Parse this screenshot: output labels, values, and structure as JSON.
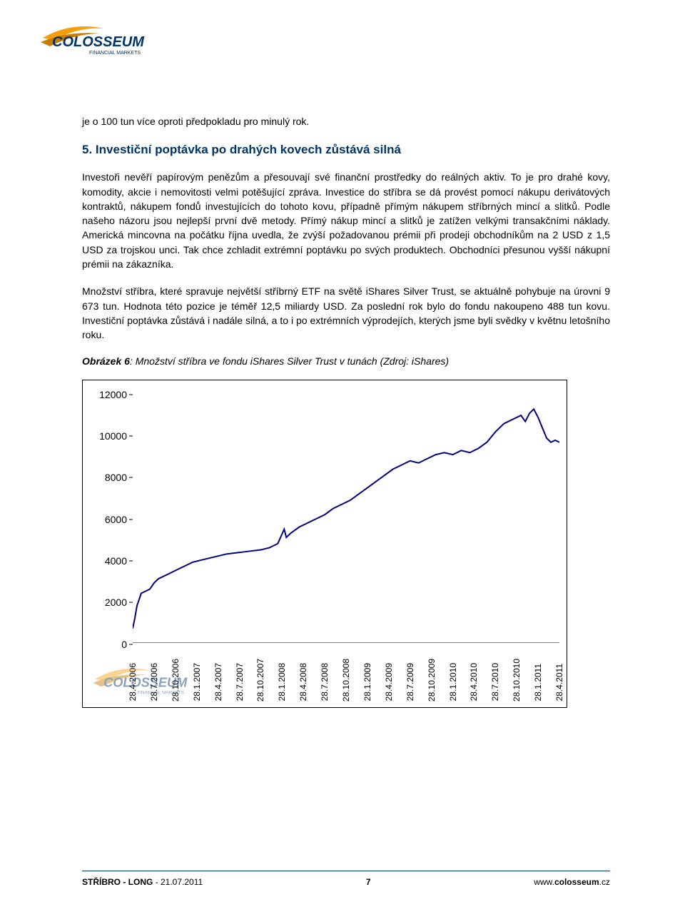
{
  "logo": {
    "brand_text": "COLOSSEUM",
    "subtitle": "FINANCIAL MARKETS",
    "swoosh_color": "#f59e0b",
    "text_color": "#003366"
  },
  "intro_line": "je o 100 tun více oproti předpokladu pro minulý rok.",
  "section": {
    "number": "5.",
    "title": "Investiční poptávka po drahých kovech zůstává silná"
  },
  "paragraph1": "Investoři nevěří papírovým penězům a přesouvají své finanční prostředky do reálných aktiv. To je pro drahé kovy, komodity, akcie i nemovitosti velmi potěšující zpráva. Investice do stříbra se dá provést pomocí nákupu derivátových kontraktů, nákupem fondů investujících do tohoto kovu, případně přímým nákupem stříbrných mincí a slitků. Podle našeho názoru jsou nejlepší první dvě metody. Přímý nákup mincí a slitků je zatížen velkými transakčními náklady. Americká mincovna na počátku října uvedla, že zvýší požadovanou prémii při prodeji obchodníkům na 2 USD z 1,5 USD za trojskou unci. Tak chce zchladit extrémní poptávku po svých produktech. Obchodníci přesunou vyšší nákupní prémii na zákazníka.",
  "paragraph2": "Množství stříbra, které spravuje největší stříbrný ETF na světě iShares Silver Trust, se aktuálně pohybuje na úrovni 9 673 tun. Hodnota této pozice je téměř 12,5 miliardy USD. Za poslední rok bylo do fondu nakoupeno 488 tun kovu. Investiční poptávka zůstává i nadále silná, a to i po extrémních výprodejích, kterých jsme byli svědky v květnu letošního roku.",
  "caption_prefix": "Obrázek 6",
  "caption_rest": ": Množství stříbra ve fondu iShares Silver Trust v tunách (Zdroj: iShares)",
  "chart": {
    "type": "line",
    "line_color": "#000080",
    "line_width": 2,
    "background_color": "#ffffff",
    "ylim": [
      0,
      12000
    ],
    "ytick_step": 2000,
    "yticks": [
      0,
      2000,
      4000,
      6000,
      8000,
      10000,
      12000
    ],
    "xlabels": [
      "28.4.2006",
      "28.7.2006",
      "28.10.2006",
      "28.1.2007",
      "28.4.2007",
      "28.7.2007",
      "28.10.2007",
      "28.1.2008",
      "28.4.2008",
      "28.7.2008",
      "28.10.2008",
      "28.1.2009",
      "28.4.2009",
      "28.7.2009",
      "28.10.2009",
      "28.1.2010",
      "28.4.2010",
      "28.7.2010",
      "28.10.2010",
      "28.1.2011",
      "28.4.2011"
    ],
    "series": [
      {
        "x": 0.0,
        "y": 700
      },
      {
        "x": 0.005,
        "y": 1200
      },
      {
        "x": 0.01,
        "y": 1800
      },
      {
        "x": 0.02,
        "y": 2400
      },
      {
        "x": 0.04,
        "y": 2600
      },
      {
        "x": 0.05,
        "y": 2900
      },
      {
        "x": 0.06,
        "y": 3100
      },
      {
        "x": 0.08,
        "y": 3300
      },
      {
        "x": 0.1,
        "y": 3500
      },
      {
        "x": 0.12,
        "y": 3700
      },
      {
        "x": 0.14,
        "y": 3900
      },
      {
        "x": 0.16,
        "y": 4000
      },
      {
        "x": 0.18,
        "y": 4100
      },
      {
        "x": 0.2,
        "y": 4200
      },
      {
        "x": 0.22,
        "y": 4300
      },
      {
        "x": 0.24,
        "y": 4350
      },
      {
        "x": 0.26,
        "y": 4400
      },
      {
        "x": 0.28,
        "y": 4450
      },
      {
        "x": 0.3,
        "y": 4500
      },
      {
        "x": 0.32,
        "y": 4600
      },
      {
        "x": 0.34,
        "y": 4800
      },
      {
        "x": 0.355,
        "y": 5500
      },
      {
        "x": 0.36,
        "y": 5100
      },
      {
        "x": 0.37,
        "y": 5300
      },
      {
        "x": 0.39,
        "y": 5600
      },
      {
        "x": 0.41,
        "y": 5800
      },
      {
        "x": 0.43,
        "y": 6000
      },
      {
        "x": 0.45,
        "y": 6200
      },
      {
        "x": 0.47,
        "y": 6500
      },
      {
        "x": 0.49,
        "y": 6700
      },
      {
        "x": 0.51,
        "y": 6900
      },
      {
        "x": 0.53,
        "y": 7200
      },
      {
        "x": 0.55,
        "y": 7500
      },
      {
        "x": 0.57,
        "y": 7800
      },
      {
        "x": 0.59,
        "y": 8100
      },
      {
        "x": 0.61,
        "y": 8400
      },
      {
        "x": 0.63,
        "y": 8600
      },
      {
        "x": 0.65,
        "y": 8800
      },
      {
        "x": 0.67,
        "y": 8700
      },
      {
        "x": 0.69,
        "y": 8900
      },
      {
        "x": 0.71,
        "y": 9100
      },
      {
        "x": 0.73,
        "y": 9200
      },
      {
        "x": 0.75,
        "y": 9100
      },
      {
        "x": 0.77,
        "y": 9300
      },
      {
        "x": 0.79,
        "y": 9200
      },
      {
        "x": 0.81,
        "y": 9400
      },
      {
        "x": 0.83,
        "y": 9700
      },
      {
        "x": 0.85,
        "y": 10200
      },
      {
        "x": 0.87,
        "y": 10600
      },
      {
        "x": 0.89,
        "y": 10800
      },
      {
        "x": 0.91,
        "y": 11000
      },
      {
        "x": 0.92,
        "y": 10700
      },
      {
        "x": 0.93,
        "y": 11100
      },
      {
        "x": 0.94,
        "y": 11300
      },
      {
        "x": 0.95,
        "y": 10900
      },
      {
        "x": 0.96,
        "y": 10400
      },
      {
        "x": 0.97,
        "y": 9900
      },
      {
        "x": 0.98,
        "y": 9700
      },
      {
        "x": 0.99,
        "y": 9800
      },
      {
        "x": 1.0,
        "y": 9700
      }
    ]
  },
  "footer": {
    "left_bold": "STŘÍBRO - LONG",
    "left_sep": " - ",
    "left_date": "21.07.2011",
    "page_number": "7",
    "right_prefix": "www.",
    "right_bold": "colosseum",
    "right_suffix": ".cz"
  }
}
